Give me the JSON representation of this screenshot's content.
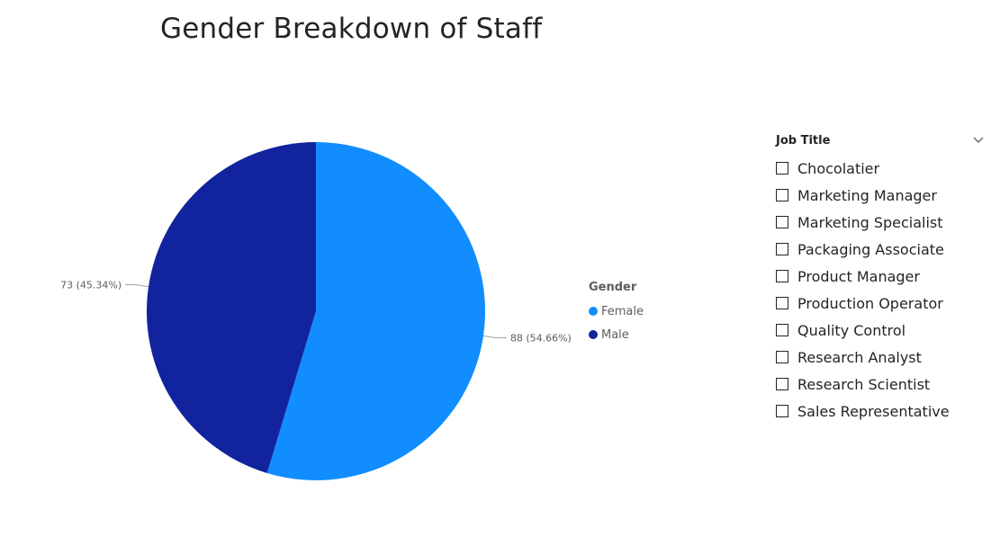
{
  "title": "Gender Breakdown of Staff",
  "chart_data": {
    "type": "pie",
    "title": "Gender Breakdown of Staff",
    "categories": [
      "Female",
      "Male"
    ],
    "values": [
      88,
      73
    ],
    "percentages": [
      54.66,
      45.34
    ],
    "data_labels": [
      "88 (54.66%)",
      "73 (45.34%)"
    ],
    "colors": [
      "#118DFF",
      "#12239E"
    ],
    "legend_title": "Gender",
    "legend_placement": "right"
  },
  "legend": {
    "title": "Gender",
    "items": [
      {
        "label": "Female",
        "color": "#118DFF"
      },
      {
        "label": "Male",
        "color": "#12239E"
      }
    ]
  },
  "slicer": {
    "title": "Job Title",
    "icon": "chevron-down-icon",
    "items": [
      {
        "label": "Chocolatier",
        "checked": false
      },
      {
        "label": "Marketing Manager",
        "checked": false
      },
      {
        "label": "Marketing Specialist",
        "checked": false
      },
      {
        "label": "Packaging Associate",
        "checked": false
      },
      {
        "label": "Product Manager",
        "checked": false
      },
      {
        "label": "Production Operator",
        "checked": false
      },
      {
        "label": "Quality Control",
        "checked": false
      },
      {
        "label": "Research Analyst",
        "checked": false
      },
      {
        "label": "Research Scientist",
        "checked": false
      },
      {
        "label": "Sales Representative",
        "checked": false
      }
    ]
  }
}
